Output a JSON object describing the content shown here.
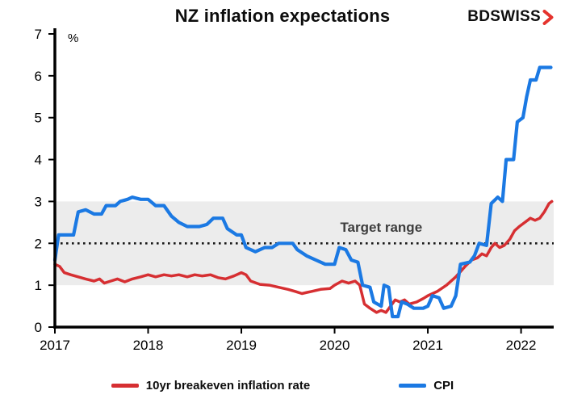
{
  "title": "NZ inflation expectations",
  "logo": {
    "text": "BDSWISS",
    "arrow_icon": "chevron-right",
    "text_color": "#0f0f0f",
    "accent_color": "#e5332d"
  },
  "chart_data": {
    "type": "line",
    "title": "NZ inflation expectations",
    "xlabel": "",
    "ylabel": "%",
    "xlim": [
      2017,
      2022.35
    ],
    "ylim": [
      0,
      7
    ],
    "yticks": [
      0,
      1,
      2,
      3,
      4,
      5,
      6,
      7
    ],
    "xticks": [
      2017,
      2018,
      2019,
      2020,
      2021,
      2022
    ],
    "grid": false,
    "legend_position": "bottom",
    "bands": [
      {
        "label": "Target range",
        "from": 1,
        "to": 3,
        "color": "#ececec"
      }
    ],
    "reference_lines": [
      {
        "y": 2,
        "style": "dotted",
        "color": "#1a1a1a"
      }
    ],
    "annotations": [
      {
        "text": "Target range",
        "x": 2020.5,
        "y": 2.28,
        "color": "#3d3d3d"
      }
    ],
    "series": [
      {
        "name": "10yr breakeven inflation rate",
        "color": "#d62f32",
        "width": 3.5,
        "points": [
          [
            2017.0,
            1.5
          ],
          [
            2017.05,
            1.45
          ],
          [
            2017.1,
            1.3
          ],
          [
            2017.17,
            1.25
          ],
          [
            2017.25,
            1.2
          ],
          [
            2017.33,
            1.15
          ],
          [
            2017.42,
            1.1
          ],
          [
            2017.48,
            1.15
          ],
          [
            2017.53,
            1.05
          ],
          [
            2017.6,
            1.1
          ],
          [
            2017.67,
            1.15
          ],
          [
            2017.75,
            1.08
          ],
          [
            2017.83,
            1.15
          ],
          [
            2017.92,
            1.2
          ],
          [
            2018.0,
            1.25
          ],
          [
            2018.08,
            1.2
          ],
          [
            2018.17,
            1.25
          ],
          [
            2018.25,
            1.22
          ],
          [
            2018.33,
            1.25
          ],
          [
            2018.42,
            1.2
          ],
          [
            2018.5,
            1.25
          ],
          [
            2018.58,
            1.22
          ],
          [
            2018.67,
            1.25
          ],
          [
            2018.75,
            1.18
          ],
          [
            2018.83,
            1.15
          ],
          [
            2018.92,
            1.22
          ],
          [
            2019.0,
            1.3
          ],
          [
            2019.05,
            1.25
          ],
          [
            2019.1,
            1.1
          ],
          [
            2019.2,
            1.02
          ],
          [
            2019.3,
            1.0
          ],
          [
            2019.4,
            0.95
          ],
          [
            2019.5,
            0.9
          ],
          [
            2019.58,
            0.85
          ],
          [
            2019.65,
            0.8
          ],
          [
            2019.75,
            0.85
          ],
          [
            2019.85,
            0.9
          ],
          [
            2019.95,
            0.92
          ],
          [
            2020.0,
            1.0
          ],
          [
            2020.08,
            1.1
          ],
          [
            2020.15,
            1.05
          ],
          [
            2020.22,
            1.1
          ],
          [
            2020.27,
            1.0
          ],
          [
            2020.32,
            0.55
          ],
          [
            2020.38,
            0.45
          ],
          [
            2020.45,
            0.35
          ],
          [
            2020.5,
            0.4
          ],
          [
            2020.55,
            0.35
          ],
          [
            2020.6,
            0.5
          ],
          [
            2020.65,
            0.65
          ],
          [
            2020.7,
            0.6
          ],
          [
            2020.75,
            0.65
          ],
          [
            2020.8,
            0.55
          ],
          [
            2020.88,
            0.6
          ],
          [
            2020.95,
            0.68
          ],
          [
            2021.0,
            0.75
          ],
          [
            2021.1,
            0.85
          ],
          [
            2021.2,
            1.0
          ],
          [
            2021.3,
            1.2
          ],
          [
            2021.4,
            1.45
          ],
          [
            2021.47,
            1.6
          ],
          [
            2021.53,
            1.65
          ],
          [
            2021.58,
            1.75
          ],
          [
            2021.63,
            1.7
          ],
          [
            2021.68,
            1.9
          ],
          [
            2021.72,
            2.0
          ],
          [
            2021.77,
            1.9
          ],
          [
            2021.82,
            1.95
          ],
          [
            2021.88,
            2.1
          ],
          [
            2021.93,
            2.3
          ],
          [
            2021.98,
            2.4
          ],
          [
            2022.04,
            2.5
          ],
          [
            2022.1,
            2.6
          ],
          [
            2022.15,
            2.55
          ],
          [
            2022.2,
            2.6
          ],
          [
            2022.25,
            2.75
          ],
          [
            2022.3,
            2.95
          ],
          [
            2022.33,
            3.0
          ]
        ]
      },
      {
        "name": "CPI",
        "color": "#1b79e3",
        "width": 4.2,
        "points": [
          [
            2017.0,
            1.6
          ],
          [
            2017.04,
            2.2
          ],
          [
            2017.2,
            2.2
          ],
          [
            2017.25,
            2.75
          ],
          [
            2017.33,
            2.8
          ],
          [
            2017.42,
            2.7
          ],
          [
            2017.5,
            2.7
          ],
          [
            2017.55,
            2.9
          ],
          [
            2017.65,
            2.9
          ],
          [
            2017.7,
            3.0
          ],
          [
            2017.78,
            3.05
          ],
          [
            2017.83,
            3.1
          ],
          [
            2017.92,
            3.05
          ],
          [
            2018.0,
            3.05
          ],
          [
            2018.08,
            2.9
          ],
          [
            2018.17,
            2.9
          ],
          [
            2018.25,
            2.65
          ],
          [
            2018.33,
            2.5
          ],
          [
            2018.42,
            2.4
          ],
          [
            2018.55,
            2.4
          ],
          [
            2018.63,
            2.45
          ],
          [
            2018.7,
            2.6
          ],
          [
            2018.8,
            2.6
          ],
          [
            2018.85,
            2.35
          ],
          [
            2018.95,
            2.2
          ],
          [
            2019.0,
            2.2
          ],
          [
            2019.05,
            1.9
          ],
          [
            2019.15,
            1.8
          ],
          [
            2019.25,
            1.9
          ],
          [
            2019.33,
            1.9
          ],
          [
            2019.4,
            2.0
          ],
          [
            2019.55,
            2.0
          ],
          [
            2019.6,
            1.85
          ],
          [
            2019.7,
            1.7
          ],
          [
            2019.8,
            1.6
          ],
          [
            2019.9,
            1.5
          ],
          [
            2020.0,
            1.5
          ],
          [
            2020.05,
            1.9
          ],
          [
            2020.12,
            1.85
          ],
          [
            2020.18,
            1.6
          ],
          [
            2020.25,
            1.55
          ],
          [
            2020.3,
            1.0
          ],
          [
            2020.38,
            0.95
          ],
          [
            2020.42,
            0.6
          ],
          [
            2020.5,
            0.5
          ],
          [
            2020.53,
            1.0
          ],
          [
            2020.58,
            0.95
          ],
          [
            2020.62,
            0.25
          ],
          [
            2020.68,
            0.25
          ],
          [
            2020.72,
            0.6
          ],
          [
            2020.78,
            0.55
          ],
          [
            2020.85,
            0.45
          ],
          [
            2020.95,
            0.45
          ],
          [
            2021.0,
            0.5
          ],
          [
            2021.05,
            0.75
          ],
          [
            2021.12,
            0.7
          ],
          [
            2021.17,
            0.45
          ],
          [
            2021.25,
            0.5
          ],
          [
            2021.3,
            0.75
          ],
          [
            2021.35,
            1.5
          ],
          [
            2021.45,
            1.55
          ],
          [
            2021.5,
            1.7
          ],
          [
            2021.55,
            2.0
          ],
          [
            2021.63,
            1.95
          ],
          [
            2021.68,
            2.95
          ],
          [
            2021.75,
            3.1
          ],
          [
            2021.8,
            3.0
          ],
          [
            2021.84,
            4.0
          ],
          [
            2021.92,
            4.0
          ],
          [
            2021.96,
            4.9
          ],
          [
            2022.02,
            5.0
          ],
          [
            2022.06,
            5.5
          ],
          [
            2022.1,
            5.9
          ],
          [
            2022.16,
            5.9
          ],
          [
            2022.2,
            6.2
          ],
          [
            2022.32,
            6.2
          ]
        ]
      }
    ]
  }
}
